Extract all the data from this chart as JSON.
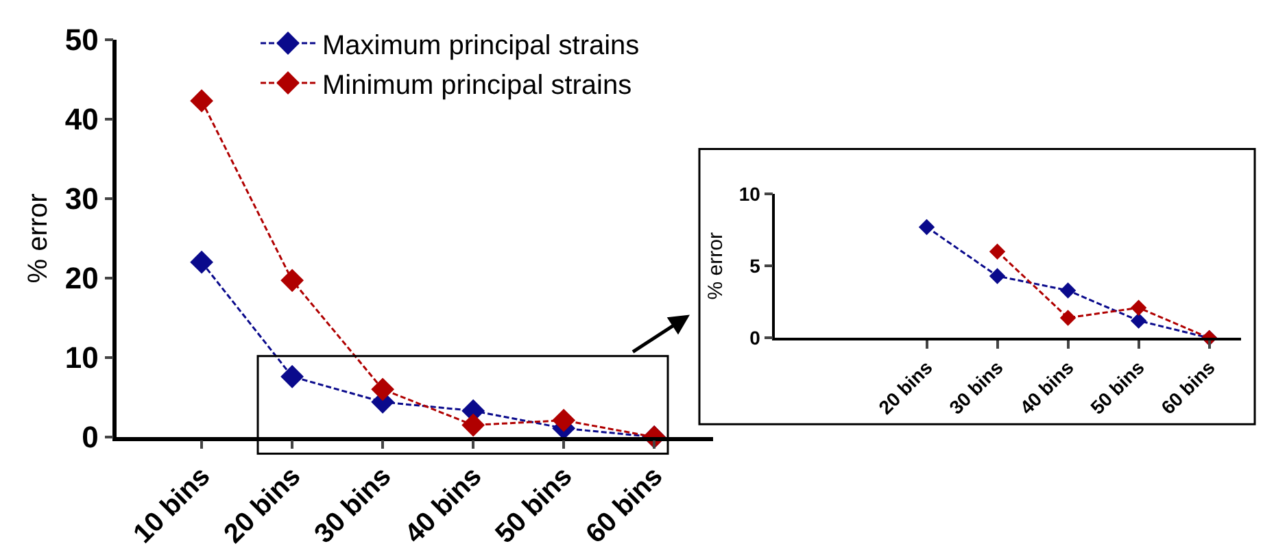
{
  "chart_data": [
    {
      "type": "line",
      "ylabel": "% error",
      "categories": [
        "10 bins",
        "20 bins",
        "30 bins",
        "40 bins",
        "50 bins",
        "60 bins"
      ],
      "ylim": [
        0,
        50
      ],
      "yticks": [
        0,
        10,
        20,
        30,
        40,
        50
      ],
      "legend": "top",
      "marker": "diamond",
      "line_style": "dashed",
      "series": [
        {
          "name": "Maximum principal strains",
          "color": "#0a0a8c",
          "values": [
            22.0,
            7.6,
            4.4,
            3.3,
            1.1,
            0
          ]
        },
        {
          "name": "Minimum principal strains",
          "color": "#b00000",
          "values": [
            42.3,
            19.7,
            6.0,
            1.5,
            2.1,
            0
          ]
        }
      ]
    },
    {
      "type": "line",
      "ylabel": "% error",
      "categories": [
        "20 bins",
        "30 bins",
        "40 bins",
        "50 bins",
        "60 bins"
      ],
      "ylim": [
        0,
        10
      ],
      "yticks": [
        0,
        5,
        10
      ],
      "legend": false,
      "marker": "diamond",
      "line_style": "dashed",
      "series": [
        {
          "color": "#0a0a8c",
          "values": [
            7.7,
            4.3,
            3.3,
            1.2,
            0
          ]
        },
        {
          "color": "#b00000",
          "values": [
            null,
            6.0,
            1.4,
            2.1,
            0
          ]
        }
      ]
    }
  ]
}
